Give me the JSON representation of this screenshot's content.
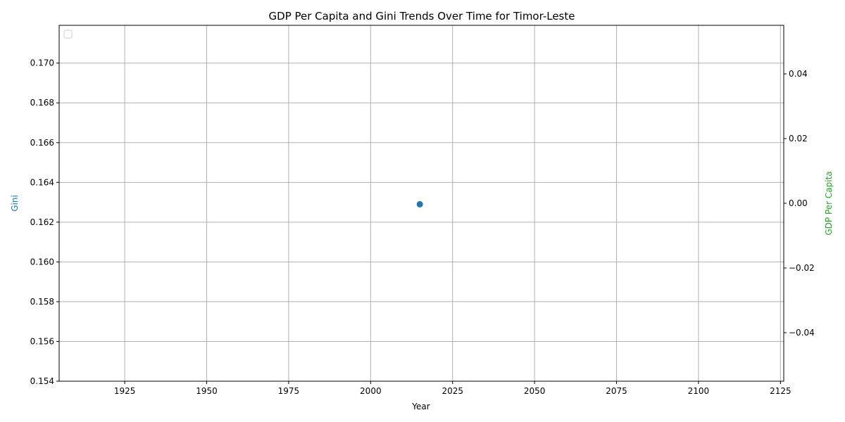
{
  "chart_data": {
    "type": "scatter",
    "title": "GDP Per Capita and Gini Trends Over Time for Timor-Leste",
    "xlabel": "Year",
    "ylabel_left": "Gini",
    "ylabel_right": "GDP Per Capita",
    "xlim": [
      1905,
      2126
    ],
    "ylim_left": [
      0.154,
      0.1719
    ],
    "ylim_right": [
      -0.055,
      0.055
    ],
    "x_ticks": [
      "1925",
      "1950",
      "1975",
      "2000",
      "2025",
      "2050",
      "2075",
      "2100",
      "2125"
    ],
    "y_left_ticks": [
      "0.154",
      "0.156",
      "0.158",
      "0.160",
      "0.162",
      "0.164",
      "0.166",
      "0.168",
      "0.170"
    ],
    "y_right_ticks": [
      "−0.04",
      "−0.02",
      "0.00",
      "0.02",
      "0.04"
    ],
    "grid": true,
    "legend": "upper-left (empty)",
    "series": [
      {
        "axis": "left",
        "color": "#1f77b4",
        "x": [
          2015
        ],
        "y": [
          0.1629
        ]
      }
    ],
    "colors": {
      "gini_label": "#1f77b4",
      "gdp_label": "#2ca02c",
      "grid": "#b0b0b0"
    }
  }
}
